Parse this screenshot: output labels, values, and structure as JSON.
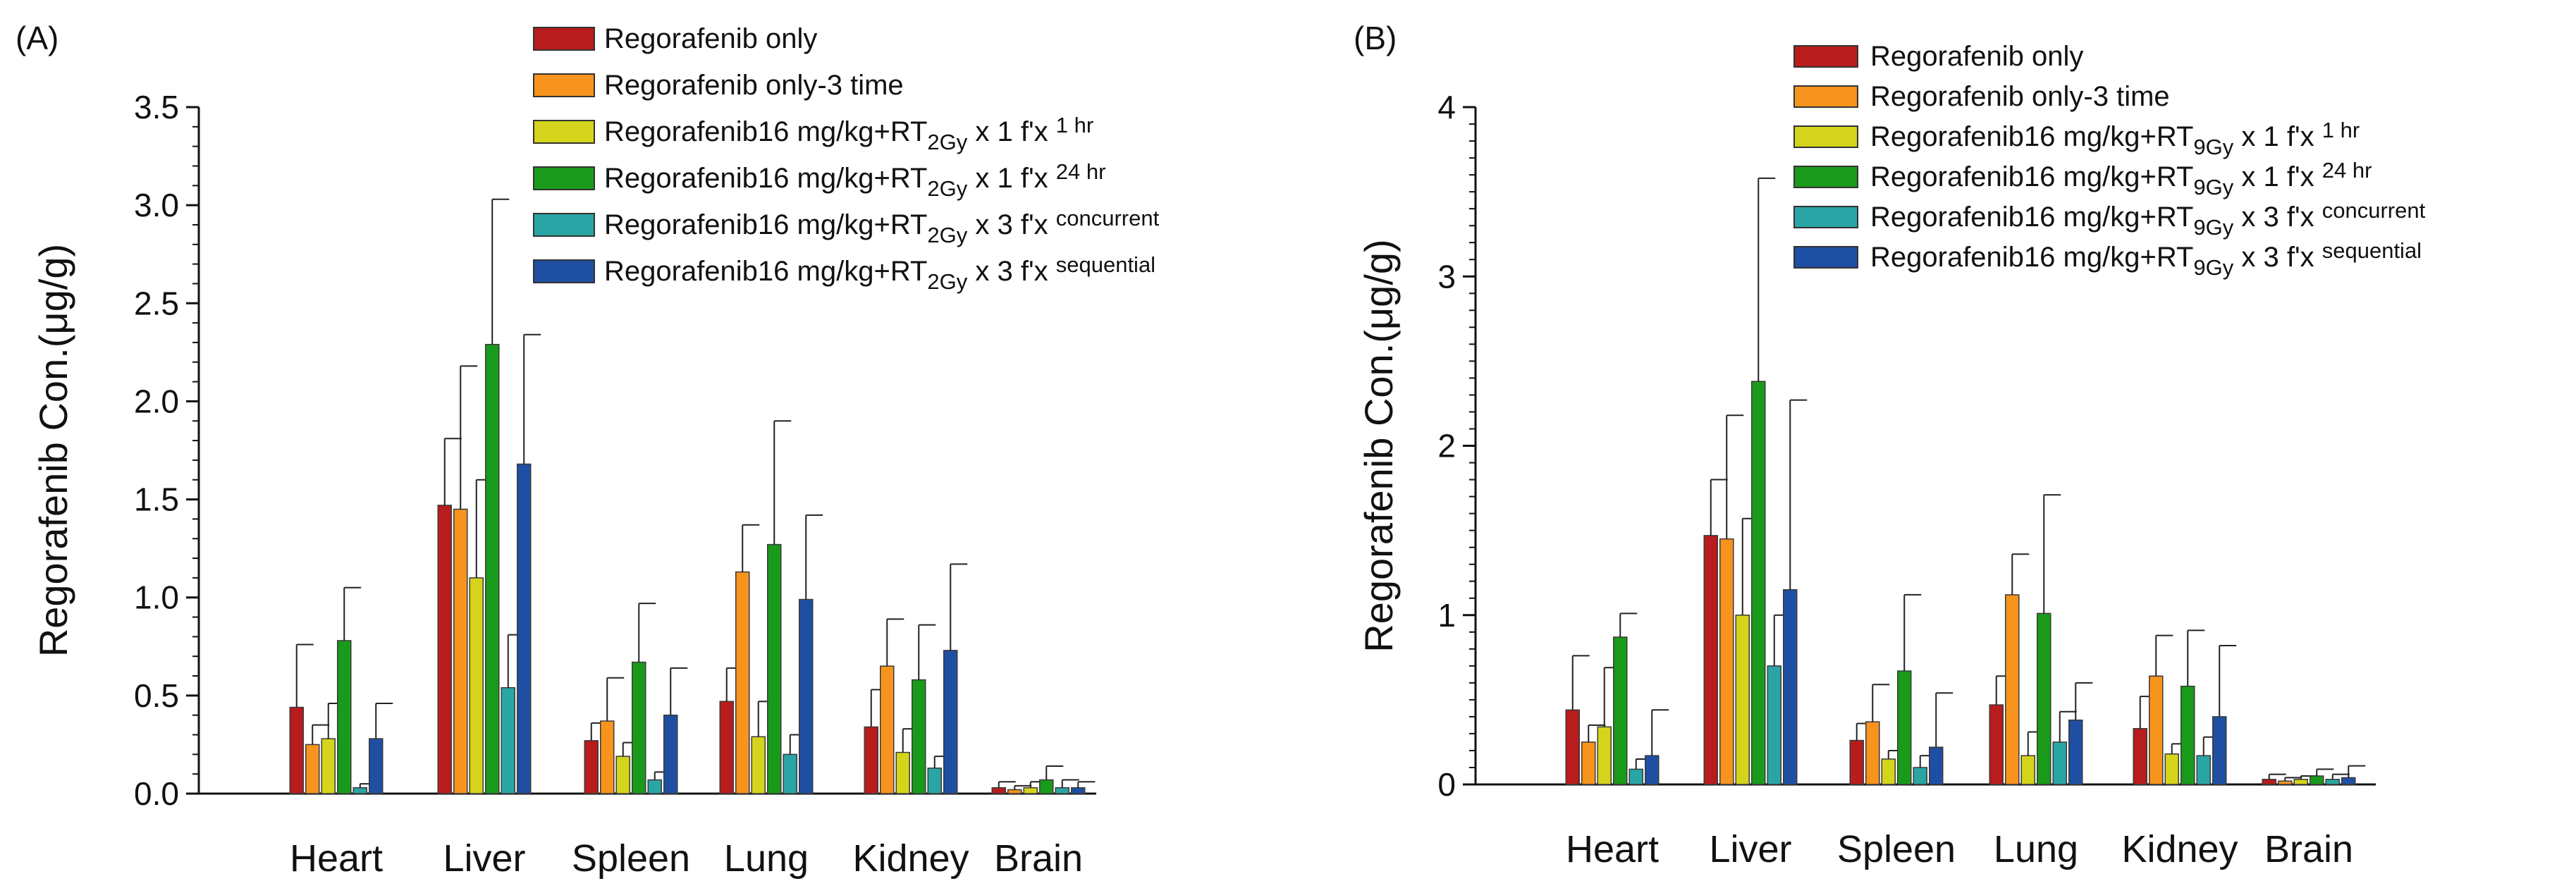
{
  "chart_data": [
    {
      "type": "bar",
      "panel_label": "(A)",
      "ylabel": "Regorafenib Con.(μg/g)",
      "xlabel": "",
      "ylim": [
        0,
        3.5
      ],
      "ytick_values": [
        0.0,
        0.5,
        1.0,
        1.5,
        2.0,
        2.5,
        3.0,
        3.5
      ],
      "ytick_labels": [
        "0.0",
        "0.5",
        "1.0",
        "1.5",
        "2.0",
        "2.5",
        "3.0",
        "3.5"
      ],
      "grid": false,
      "legend_position": "top-center",
      "categories": [
        "Heart",
        "Liver",
        "Spleen",
        "Lung",
        "Kidney",
        "Brain"
      ],
      "series": [
        {
          "name": "Regorafenib only",
          "legend_main": "Regorafenib only",
          "legend_sub": "",
          "legend_mid": "",
          "legend_sup": "",
          "color": "#b81c1c",
          "values": [
            0.44,
            1.47,
            0.27,
            0.47,
            0.34,
            0.03
          ],
          "errors": [
            0.32,
            0.34,
            0.09,
            0.17,
            0.19,
            0.03
          ]
        },
        {
          "name": "Regorafenib only-3 time",
          "legend_main": "Regorafenib only-3 time",
          "legend_sub": "",
          "legend_mid": "",
          "legend_sup": "",
          "color": "#f7941d",
          "values": [
            0.25,
            1.45,
            0.37,
            1.13,
            0.65,
            0.02
          ],
          "errors": [
            0.1,
            0.73,
            0.22,
            0.24,
            0.24,
            0.02
          ]
        },
        {
          "name": "Regorafenib16 mg/kg+RT2Gy x 1 f'x 1 hr",
          "legend_main": "Regorafenib16 mg/kg+RT",
          "legend_sub": "2Gy",
          "legend_mid": " x 1 f'x ",
          "legend_sup": "1 hr",
          "color": "#d4d41c",
          "values": [
            0.28,
            1.1,
            0.19,
            0.29,
            0.21,
            0.03
          ],
          "errors": [
            0.18,
            0.5,
            0.07,
            0.18,
            0.12,
            0.03
          ]
        },
        {
          "name": "Regorafenib16 mg/kg+RT2Gy x 1 f'x 24 hr",
          "legend_main": "Regorafenib16 mg/kg+RT",
          "legend_sub": "2Gy",
          "legend_mid": " x 1 f'x ",
          "legend_sup": "24 hr",
          "color": "#1a9a1a",
          "values": [
            0.78,
            2.29,
            0.67,
            1.27,
            0.58,
            0.07
          ],
          "errors": [
            0.27,
            0.74,
            0.3,
            0.63,
            0.28,
            0.07
          ]
        },
        {
          "name": "Regorafenib16 mg/kg+RT2Gy x 3 f'x concurrent",
          "legend_main": "Regorafenib16 mg/kg+RT",
          "legend_sub": "2Gy",
          "legend_mid": " x 3 f'x ",
          "legend_sup": "concurrent",
          "color": "#2aa5a5",
          "values": [
            0.03,
            0.54,
            0.07,
            0.2,
            0.13,
            0.03
          ],
          "errors": [
            0.02,
            0.27,
            0.04,
            0.1,
            0.06,
            0.04
          ]
        },
        {
          "name": "Regorafenib16 mg/kg+RT2Gy x 3 f'x sequential",
          "legend_main": "Regorafenib16 mg/kg+RT",
          "legend_sub": "2Gy",
          "legend_mid": " x 3 f'x ",
          "legend_sup": "sequential",
          "color": "#1f4fa3",
          "values": [
            0.28,
            1.68,
            0.4,
            0.99,
            0.73,
            0.03
          ],
          "errors": [
            0.18,
            0.66,
            0.24,
            0.43,
            0.44,
            0.03
          ]
        }
      ]
    },
    {
      "type": "bar",
      "panel_label": "(B)",
      "ylabel": "Regorafenib Con.(μg/g)",
      "xlabel": "",
      "ylim": [
        0,
        4
      ],
      "ytick_values": [
        0,
        1,
        2,
        3,
        4
      ],
      "ytick_labels": [
        "0",
        "1",
        "2",
        "3",
        "4"
      ],
      "grid": false,
      "legend_position": "top-right",
      "categories": [
        "Heart",
        "Liver",
        "Spleen",
        "Lung",
        "Kidney",
        "Brain"
      ],
      "series": [
        {
          "name": "Regorafenib only",
          "legend_main": "Regorafenib only",
          "legend_sub": "",
          "legend_mid": "",
          "legend_sup": "",
          "color": "#b81c1c",
          "values": [
            0.44,
            1.47,
            0.26,
            0.47,
            0.33,
            0.03
          ],
          "errors": [
            0.32,
            0.33,
            0.1,
            0.17,
            0.19,
            0.03
          ]
        },
        {
          "name": "Regorafenib only-3 time",
          "legend_main": "Regorafenib only-3 time",
          "legend_sub": "",
          "legend_mid": "",
          "legend_sup": "",
          "color": "#f7941d",
          "values": [
            0.25,
            1.45,
            0.37,
            1.12,
            0.64,
            0.02
          ],
          "errors": [
            0.1,
            0.73,
            0.22,
            0.24,
            0.24,
            0.02
          ]
        },
        {
          "name": "Regorafenib16 mg/kg+RT9Gy x 1 f'x 1 hr",
          "legend_main": "Regorafenib16 mg/kg+RT",
          "legend_sub": "9Gy",
          "legend_mid": " x 1 f'x ",
          "legend_sup": "1 hr",
          "color": "#d4d41c",
          "values": [
            0.34,
            1.0,
            0.15,
            0.17,
            0.18,
            0.03
          ],
          "errors": [
            0.35,
            0.57,
            0.05,
            0.14,
            0.06,
            0.02
          ]
        },
        {
          "name": "Regorafenib16 mg/kg+RT9Gy x 1 f'x 24 hr",
          "legend_main": "Regorafenib16 mg/kg+RT",
          "legend_sub": "9Gy",
          "legend_mid": " x 1 f'x ",
          "legend_sup": "24 hr",
          "color": "#1a9a1a",
          "values": [
            0.87,
            2.38,
            0.67,
            1.01,
            0.58,
            0.05
          ],
          "errors": [
            0.14,
            1.2,
            0.45,
            0.7,
            0.33,
            0.04
          ]
        },
        {
          "name": "Regorafenib16 mg/kg+RT9Gy x 3 f'x concurrent",
          "legend_main": "Regorafenib16 mg/kg+RT",
          "legend_sub": "9Gy",
          "legend_mid": " x 3 f'x ",
          "legend_sup": "concurrent",
          "color": "#2aa5a5",
          "values": [
            0.09,
            0.7,
            0.1,
            0.25,
            0.17,
            0.03
          ],
          "errors": [
            0.06,
            0.3,
            0.07,
            0.18,
            0.11,
            0.03
          ]
        },
        {
          "name": "Regorafenib16 mg/kg+RT9Gy x 3 f'x sequential",
          "legend_main": "Regorafenib16 mg/kg+RT",
          "legend_sub": "9Gy",
          "legend_mid": " x 3 f'x ",
          "legend_sup": "sequential",
          "color": "#1f4fa3",
          "values": [
            0.17,
            1.15,
            0.22,
            0.38,
            0.4,
            0.04
          ],
          "errors": [
            0.27,
            1.12,
            0.32,
            0.22,
            0.42,
            0.07
          ]
        }
      ]
    }
  ]
}
